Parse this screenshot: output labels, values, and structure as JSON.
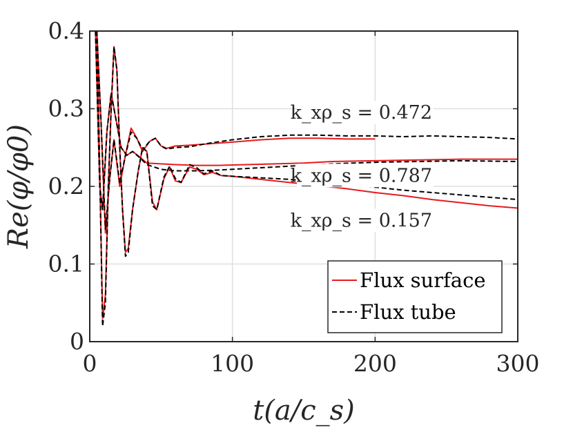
{
  "chart_data": {
    "type": "line",
    "title": "",
    "xlabel": "t(a/c_s)",
    "ylabel": "Re(φ/φ0)",
    "xlim": [
      0,
      300
    ],
    "ylim": [
      0,
      0.4
    ],
    "x_ticks": [
      0,
      100,
      200,
      300
    ],
    "x_tick_labels": [
      "0",
      "100",
      "200",
      "300"
    ],
    "y_ticks": [
      0,
      0.1,
      0.2,
      0.3,
      0.4
    ],
    "y_tick_labels": [
      "0",
      "0.1",
      "0.2",
      "0.3",
      "0.4"
    ],
    "grid": true,
    "legend_position": "bottom-right",
    "legend": [
      {
        "label": "Flux surface",
        "color": "#e8191b",
        "style": "solid"
      },
      {
        "label": "Flux tube",
        "color": "#000000",
        "style": "dashed"
      }
    ],
    "annotations": [
      {
        "text": "k_xρ_s = 0.472",
        "x": 240,
        "y": 0.287
      },
      {
        "text": "k_xρ_s = 0.787",
        "x": 240,
        "y": 0.206
      },
      {
        "text": "k_xρ_s = 0.157",
        "x": 240,
        "y": 0.148
      }
    ],
    "series": [
      {
        "name": "Flux surface",
        "group": "k_xρ_s = 0.472",
        "color": "#e8191b",
        "style": "solid",
        "points": [
          [
            5,
            0.4
          ],
          [
            8,
            0.28
          ],
          [
            11,
            0.14
          ],
          [
            14,
            0.21
          ],
          [
            17,
            0.26
          ],
          [
            21,
            0.2
          ],
          [
            25,
            0.24
          ],
          [
            29,
            0.275
          ],
          [
            33,
            0.262
          ],
          [
            37,
            0.245
          ],
          [
            42,
            0.258
          ],
          [
            46,
            0.262
          ],
          [
            50,
            0.252
          ],
          [
            54,
            0.249
          ],
          [
            60,
            0.252
          ],
          [
            70,
            0.253
          ],
          [
            85,
            0.255
          ],
          [
            100,
            0.257
          ],
          [
            120,
            0.26
          ],
          [
            140,
            0.262
          ],
          [
            160,
            0.262
          ],
          [
            180,
            0.261
          ],
          [
            200,
            0.261
          ]
        ]
      },
      {
        "name": "Flux tube",
        "group": "k_xρ_s = 0.472",
        "color": "#000000",
        "style": "dashed",
        "points": [
          [
            5,
            0.4
          ],
          [
            8,
            0.28
          ],
          [
            11,
            0.145
          ],
          [
            14,
            0.21
          ],
          [
            17,
            0.26
          ],
          [
            21,
            0.205
          ],
          [
            25,
            0.24
          ],
          [
            29,
            0.27
          ],
          [
            33,
            0.262
          ],
          [
            37,
            0.247
          ],
          [
            42,
            0.258
          ],
          [
            46,
            0.262
          ],
          [
            50,
            0.252
          ],
          [
            54,
            0.248
          ],
          [
            60,
            0.25
          ],
          [
            70,
            0.251
          ],
          [
            85,
            0.256
          ],
          [
            100,
            0.26
          ],
          [
            120,
            0.264
          ],
          [
            140,
            0.266
          ],
          [
            160,
            0.266
          ],
          [
            180,
            0.265
          ],
          [
            200,
            0.265
          ],
          [
            220,
            0.264
          ],
          [
            240,
            0.265
          ],
          [
            260,
            0.264
          ],
          [
            280,
            0.263
          ],
          [
            300,
            0.261
          ]
        ]
      },
      {
        "name": "Flux surface",
        "group": "k_xρ_s = 0.787",
        "color": "#e8191b",
        "style": "solid",
        "points": [
          [
            4,
            0.4
          ],
          [
            7,
            0.2
          ],
          [
            9,
            0.17
          ],
          [
            12,
            0.27
          ],
          [
            15,
            0.32
          ],
          [
            18,
            0.29
          ],
          [
            22,
            0.25
          ],
          [
            26,
            0.24
          ],
          [
            30,
            0.245
          ],
          [
            35,
            0.238
          ],
          [
            40,
            0.23
          ],
          [
            50,
            0.229
          ],
          [
            60,
            0.228
          ],
          [
            75,
            0.227
          ],
          [
            90,
            0.227
          ],
          [
            110,
            0.228
          ],
          [
            130,
            0.229
          ],
          [
            150,
            0.23
          ],
          [
            170,
            0.232
          ],
          [
            200,
            0.233
          ],
          [
            230,
            0.234
          ],
          [
            260,
            0.235
          ],
          [
            300,
            0.235
          ]
        ]
      },
      {
        "name": "Flux tube",
        "group": "k_xρ_s = 0.787",
        "color": "#000000",
        "style": "dashed",
        "points": [
          [
            4,
            0.4
          ],
          [
            7,
            0.2
          ],
          [
            9,
            0.17
          ],
          [
            12,
            0.27
          ],
          [
            15,
            0.32
          ],
          [
            18,
            0.29
          ],
          [
            22,
            0.25
          ],
          [
            26,
            0.24
          ],
          [
            30,
            0.245
          ],
          [
            35,
            0.237
          ],
          [
            40,
            0.228
          ],
          [
            50,
            0.222
          ],
          [
            60,
            0.22
          ],
          [
            75,
            0.22
          ],
          [
            90,
            0.221
          ],
          [
            110,
            0.223
          ],
          [
            130,
            0.225
          ],
          [
            150,
            0.227
          ],
          [
            170,
            0.229
          ],
          [
            200,
            0.231
          ],
          [
            230,
            0.232
          ],
          [
            260,
            0.233
          ],
          [
            300,
            0.232
          ]
        ]
      },
      {
        "name": "Flux surface",
        "group": "k_xρ_s = 0.157",
        "color": "#e8191b",
        "style": "solid",
        "points": [
          [
            5,
            0.4
          ],
          [
            7,
            0.22
          ],
          [
            9,
            0.03
          ],
          [
            11,
            0.06
          ],
          [
            13,
            0.2
          ],
          [
            15,
            0.3
          ],
          [
            17,
            0.38
          ],
          [
            19,
            0.35
          ],
          [
            21,
            0.25
          ],
          [
            23,
            0.17
          ],
          [
            25,
            0.115
          ],
          [
            27,
            0.12
          ],
          [
            30,
            0.17
          ],
          [
            34,
            0.22
          ],
          [
            37,
            0.25
          ],
          [
            40,
            0.245
          ],
          [
            44,
            0.18
          ],
          [
            47,
            0.17
          ],
          [
            52,
            0.21
          ],
          [
            56,
            0.225
          ],
          [
            60,
            0.207
          ],
          [
            64,
            0.205
          ],
          [
            70,
            0.225
          ],
          [
            75,
            0.222
          ],
          [
            80,
            0.215
          ],
          [
            86,
            0.218
          ],
          [
            92,
            0.214
          ],
          [
            100,
            0.213
          ],
          [
            120,
            0.209
          ],
          [
            140,
            0.205
          ],
          [
            160,
            0.201
          ],
          [
            180,
            0.197
          ],
          [
            200,
            0.192
          ],
          [
            220,
            0.188
          ],
          [
            240,
            0.183
          ],
          [
            260,
            0.179
          ],
          [
            280,
            0.175
          ],
          [
            300,
            0.172
          ]
        ]
      },
      {
        "name": "Flux tube",
        "group": "k_xρ_s = 0.157",
        "color": "#000000",
        "style": "dashed",
        "points": [
          [
            5,
            0.4
          ],
          [
            7,
            0.22
          ],
          [
            9,
            0.02
          ],
          [
            11,
            0.05
          ],
          [
            13,
            0.2
          ],
          [
            15,
            0.3
          ],
          [
            17,
            0.38
          ],
          [
            19,
            0.35
          ],
          [
            21,
            0.25
          ],
          [
            23,
            0.17
          ],
          [
            25,
            0.11
          ],
          [
            27,
            0.115
          ],
          [
            30,
            0.17
          ],
          [
            34,
            0.22
          ],
          [
            37,
            0.25
          ],
          [
            40,
            0.245
          ],
          [
            44,
            0.175
          ],
          [
            47,
            0.17
          ],
          [
            52,
            0.212
          ],
          [
            56,
            0.226
          ],
          [
            60,
            0.21
          ],
          [
            64,
            0.205
          ],
          [
            70,
            0.228
          ],
          [
            75,
            0.224
          ],
          [
            80,
            0.216
          ],
          [
            86,
            0.22
          ],
          [
            92,
            0.214
          ],
          [
            100,
            0.213
          ],
          [
            120,
            0.211
          ],
          [
            140,
            0.209
          ],
          [
            160,
            0.206
          ],
          [
            180,
            0.203
          ],
          [
            200,
            0.199
          ],
          [
            220,
            0.195
          ],
          [
            240,
            0.192
          ],
          [
            260,
            0.189
          ],
          [
            280,
            0.186
          ],
          [
            300,
            0.183
          ]
        ]
      }
    ]
  }
}
